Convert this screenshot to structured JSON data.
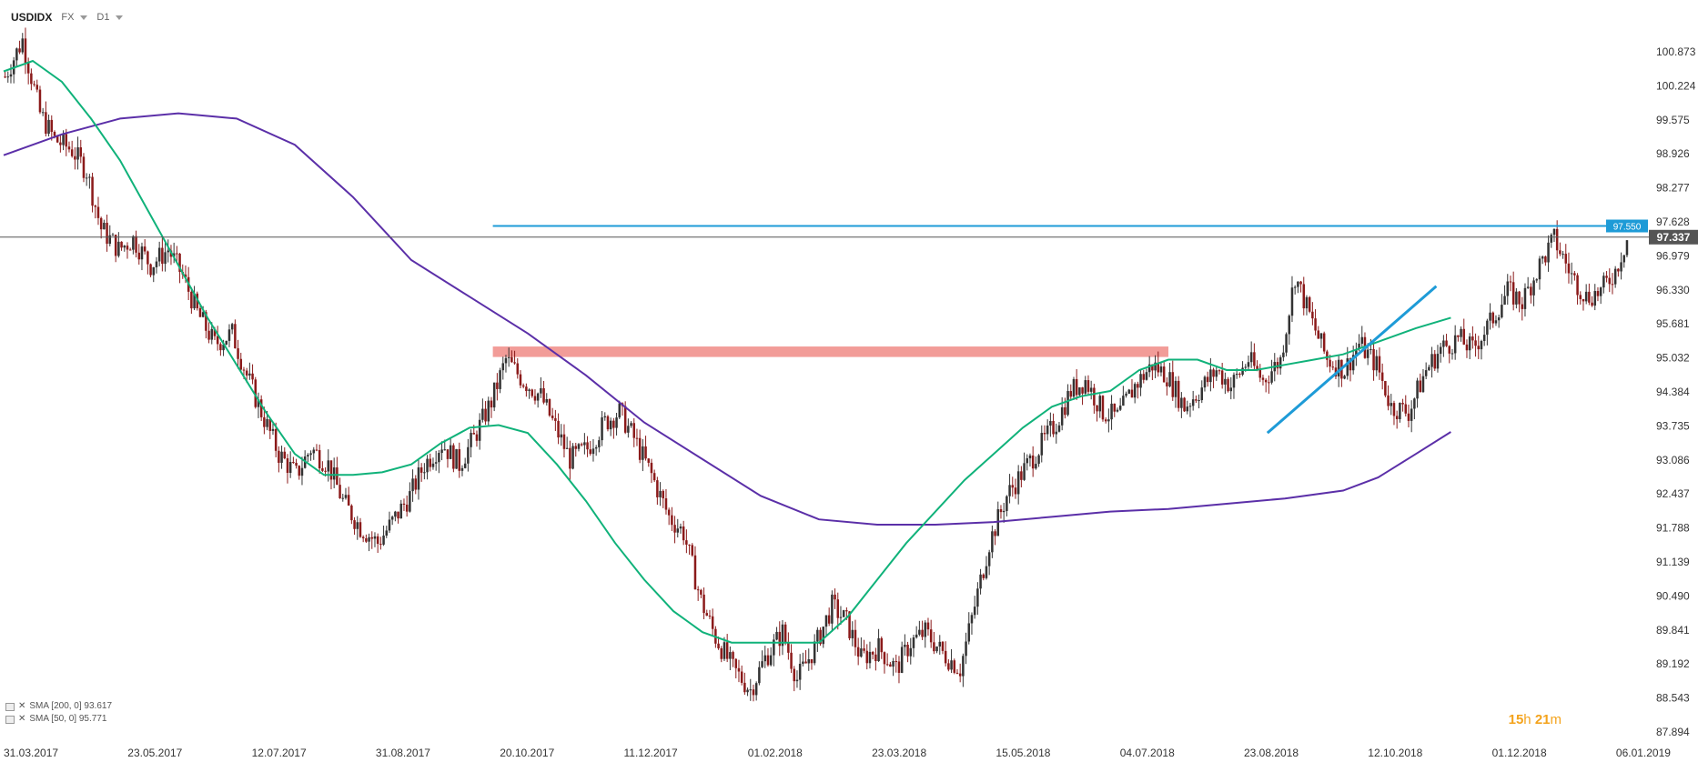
{
  "header": {
    "symbol": "USDIDX",
    "market": "FX",
    "timeframe": "D1"
  },
  "legend": [
    {
      "text": "SMA [200, 0] 93.617"
    },
    {
      "text": "SMA [50, 0] 95.771"
    }
  ],
  "timer": {
    "hours": "15",
    "h": "h",
    "minutes": "21",
    "m": "m"
  },
  "colors": {
    "candle_up": "#333333",
    "candle_down": "#8b1a1a",
    "sma200": "#5b2fa8",
    "sma50": "#10b27a",
    "resistance_line": "#1e9bd7",
    "trendline": "#1e9bd7",
    "zone": "#f08b86",
    "current_price_box": "#555555"
  },
  "chart_data": {
    "type": "candlestick",
    "y_ticks": [
      100.873,
      100.224,
      99.575,
      98.926,
      98.277,
      97.628,
      96.979,
      96.33,
      95.681,
      95.032,
      94.384,
      93.735,
      93.086,
      92.437,
      91.788,
      91.139,
      90.49,
      89.841,
      89.192,
      88.543,
      87.894
    ],
    "y_tick_labels": [
      "100.873",
      "100.224",
      "99.575",
      "98.926",
      "98.277",
      "97.628",
      "96.979",
      "96.330",
      "95.681",
      "95.032",
      "94.384",
      "93.735",
      "93.086",
      "92.437",
      "91.788",
      "91.139",
      "90.490",
      "89.841",
      "89.192",
      "88.543",
      "87.894"
    ],
    "ylim": [
      87.894,
      100.873
    ],
    "x_tick_labels": [
      "31.03.2017",
      "23.05.2017",
      "12.07.2017",
      "31.08.2017",
      "20.10.2017",
      "11.12.2017",
      "01.02.2018",
      "23.03.2018",
      "15.05.2018",
      "04.07.2018",
      "23.08.2018",
      "12.10.2018",
      "01.12.2018",
      "06.01.2019"
    ],
    "close_path": [
      [
        0,
        100.4
      ],
      [
        6,
        101.1
      ],
      [
        12,
        99.7
      ],
      [
        17,
        99.2
      ],
      [
        23,
        99.0
      ],
      [
        28,
        98.6
      ],
      [
        33,
        97.5
      ],
      [
        39,
        97.1
      ],
      [
        44,
        97.3
      ],
      [
        50,
        96.8
      ],
      [
        56,
        97.1
      ],
      [
        61,
        96.6
      ],
      [
        66,
        95.9
      ],
      [
        72,
        95.3
      ],
      [
        78,
        95.5
      ],
      [
        83,
        94.7
      ],
      [
        88,
        94.0
      ],
      [
        94,
        93.2
      ],
      [
        100,
        92.8
      ],
      [
        105,
        93.3
      ],
      [
        111,
        93.0
      ],
      [
        116,
        92.3
      ],
      [
        122,
        91.8
      ],
      [
        128,
        91.5
      ],
      [
        133,
        91.9
      ],
      [
        139,
        92.4
      ],
      [
        144,
        93.0
      ],
      [
        150,
        93.4
      ],
      [
        156,
        93.0
      ],
      [
        161,
        93.5
      ],
      [
        167,
        94.2
      ],
      [
        172,
        95.0
      ],
      [
        178,
        94.6
      ],
      [
        184,
        94.3
      ],
      [
        189,
        93.7
      ],
      [
        194,
        93.1
      ],
      [
        200,
        93.3
      ],
      [
        206,
        93.8
      ],
      [
        211,
        94.0
      ],
      [
        216,
        93.5
      ],
      [
        222,
        92.8
      ],
      [
        228,
        92.0
      ],
      [
        233,
        91.7
      ],
      [
        239,
        90.4
      ],
      [
        244,
        89.7
      ],
      [
        250,
        89.1
      ],
      [
        256,
        88.7
      ],
      [
        261,
        89.3
      ],
      [
        267,
        89.8
      ],
      [
        272,
        88.9
      ],
      [
        278,
        89.5
      ],
      [
        284,
        90.3
      ],
      [
        289,
        90.0
      ],
      [
        294,
        89.3
      ],
      [
        300,
        89.5
      ],
      [
        306,
        89.1
      ],
      [
        311,
        89.6
      ],
      [
        316,
        89.8
      ],
      [
        322,
        89.4
      ],
      [
        328,
        89.1
      ],
      [
        333,
        90.3
      ],
      [
        338,
        91.5
      ],
      [
        344,
        92.4
      ],
      [
        350,
        92.9
      ],
      [
        355,
        93.3
      ],
      [
        361,
        93.8
      ],
      [
        366,
        94.4
      ],
      [
        371,
        94.6
      ],
      [
        377,
        94.0
      ],
      [
        382,
        93.9
      ],
      [
        388,
        94.5
      ],
      [
        394,
        94.9
      ],
      [
        399,
        94.7
      ],
      [
        405,
        94.1
      ],
      [
        410,
        94.4
      ],
      [
        416,
        94.8
      ],
      [
        421,
        94.5
      ],
      [
        427,
        95.0
      ],
      [
        432,
        94.6
      ],
      [
        438,
        95.0
      ],
      [
        443,
        96.6
      ],
      [
        449,
        95.7
      ],
      [
        454,
        95.0
      ],
      [
        460,
        94.8
      ],
      [
        465,
        95.3
      ],
      [
        471,
        94.9
      ],
      [
        476,
        94.1
      ],
      [
        482,
        94.0
      ],
      [
        488,
        94.8
      ],
      [
        493,
        95.2
      ],
      [
        499,
        95.4
      ],
      [
        504,
        95.2
      ],
      [
        510,
        95.7
      ],
      [
        516,
        96.3
      ],
      [
        521,
        96.1
      ],
      [
        527,
        96.8
      ],
      [
        532,
        97.3
      ],
      [
        538,
        96.6
      ],
      [
        543,
        96.2
      ],
      [
        548,
        96.3
      ],
      [
        553,
        96.7
      ],
      [
        557,
        97.3
      ]
    ],
    "lines": [
      {
        "price": 97.55,
        "label": "97.550"
      },
      {
        "price": 97.337,
        "label": "97.337"
      }
    ],
    "zone": {
      "from_bar": 168,
      "to_bar": 400,
      "low": 95.05,
      "high": 95.25
    },
    "trendline": {
      "from": [
        434,
        93.6
      ],
      "to": [
        492,
        96.4
      ]
    },
    "sma200": [
      [
        0,
        98.9
      ],
      [
        20,
        99.3
      ],
      [
        40,
        99.6
      ],
      [
        60,
        99.7
      ],
      [
        80,
        99.6
      ],
      [
        100,
        99.1
      ],
      [
        120,
        98.1
      ],
      [
        140,
        96.9
      ],
      [
        160,
        96.2
      ],
      [
        180,
        95.5
      ],
      [
        200,
        94.7
      ],
      [
        220,
        93.8
      ],
      [
        240,
        93.1
      ],
      [
        260,
        92.4
      ],
      [
        280,
        91.95
      ],
      [
        300,
        91.85
      ],
      [
        320,
        91.85
      ],
      [
        340,
        91.9
      ],
      [
        360,
        92.0
      ],
      [
        380,
        92.1
      ],
      [
        400,
        92.15
      ],
      [
        420,
        92.25
      ],
      [
        440,
        92.35
      ],
      [
        460,
        92.5
      ],
      [
        472,
        92.75
      ],
      [
        485,
        93.2
      ],
      [
        497,
        93.62
      ]
    ],
    "sma50": [
      [
        0,
        100.5
      ],
      [
        10,
        100.7
      ],
      [
        20,
        100.3
      ],
      [
        30,
        99.6
      ],
      [
        40,
        98.8
      ],
      [
        50,
        97.8
      ],
      [
        60,
        96.8
      ],
      [
        70,
        95.8
      ],
      [
        80,
        94.9
      ],
      [
        90,
        94.0
      ],
      [
        100,
        93.2
      ],
      [
        110,
        92.8
      ],
      [
        120,
        92.8
      ],
      [
        130,
        92.85
      ],
      [
        140,
        93.0
      ],
      [
        150,
        93.4
      ],
      [
        160,
        93.7
      ],
      [
        170,
        93.75
      ],
      [
        180,
        93.6
      ],
      [
        190,
        93.0
      ],
      [
        200,
        92.3
      ],
      [
        210,
        91.5
      ],
      [
        220,
        90.8
      ],
      [
        230,
        90.2
      ],
      [
        240,
        89.8
      ],
      [
        250,
        89.6
      ],
      [
        260,
        89.6
      ],
      [
        270,
        89.6
      ],
      [
        280,
        89.6
      ],
      [
        290,
        90.1
      ],
      [
        300,
        90.8
      ],
      [
        310,
        91.5
      ],
      [
        320,
        92.1
      ],
      [
        330,
        92.7
      ],
      [
        340,
        93.2
      ],
      [
        350,
        93.7
      ],
      [
        360,
        94.1
      ],
      [
        370,
        94.3
      ],
      [
        380,
        94.4
      ],
      [
        390,
        94.8
      ],
      [
        400,
        95.0
      ],
      [
        410,
        95.0
      ],
      [
        420,
        94.8
      ],
      [
        430,
        94.8
      ],
      [
        440,
        94.9
      ],
      [
        450,
        95.0
      ],
      [
        460,
        95.1
      ],
      [
        470,
        95.3
      ],
      [
        485,
        95.6
      ],
      [
        497,
        95.8
      ]
    ],
    "total_bars": 565
  }
}
